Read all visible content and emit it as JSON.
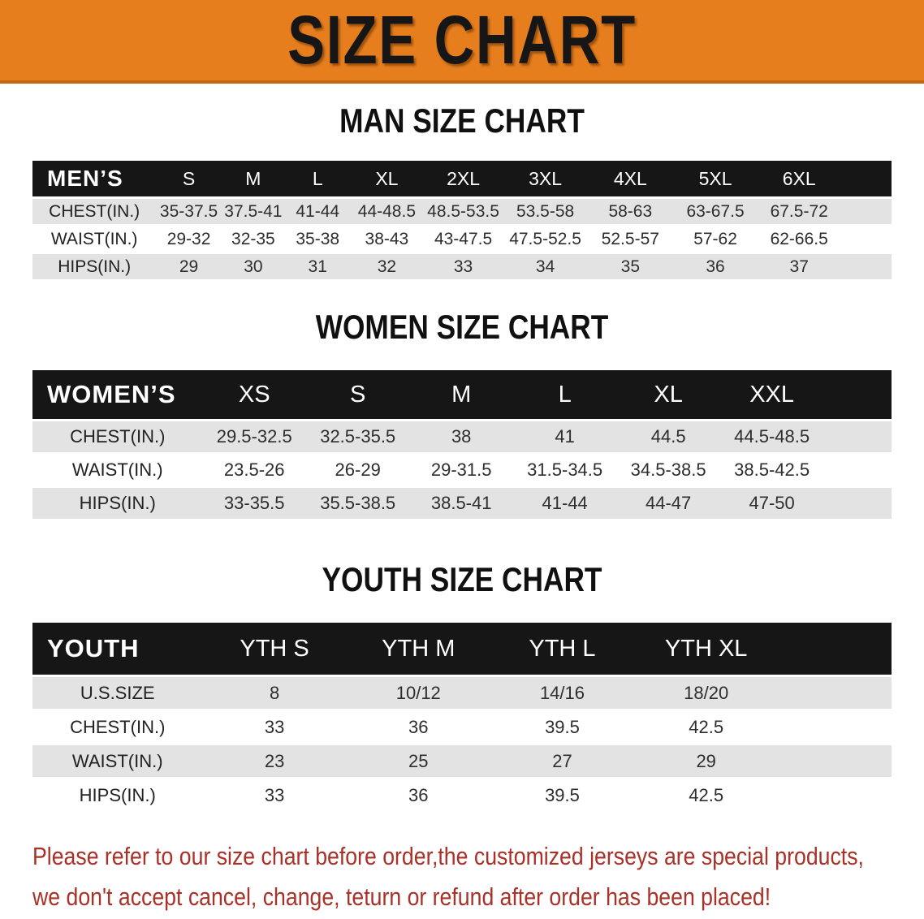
{
  "banner": {
    "title": "SIZE CHART",
    "bg_color": "#E67E1E",
    "text_color": "#161616"
  },
  "sections": [
    {
      "heading": "MAN SIZE CHART",
      "table": {
        "header_label": "MEN’S",
        "sizes": [
          "S",
          "M",
          "L",
          "XL",
          "2XL",
          "3XL",
          "4XL",
          "5XL",
          "6XL"
        ],
        "rows": [
          {
            "label": "CHEST(IN.)",
            "values": [
              "35-37.5",
              "37.5-41",
              "41-44",
              "44-48.5",
              "48.5-53.5",
              "53.5-58",
              "58-63",
              "63-67.5",
              "67.5-72"
            ]
          },
          {
            "label": "WAIST(IN.)",
            "values": [
              "29-32",
              "32-35",
              "35-38",
              "38-43",
              "43-47.5",
              "47.5-52.5",
              "52.5-57",
              "57-62",
              "62-66.5"
            ]
          },
          {
            "label": "HIPS(IN.)",
            "values": [
              "29",
              "30",
              "31",
              "32",
              "33",
              "34",
              "35",
              "36",
              "37"
            ]
          }
        ]
      }
    },
    {
      "heading": "WOMEN SIZE CHART",
      "table": {
        "header_label": "WOMEN’S",
        "sizes": [
          "XS",
          "S",
          "M",
          "L",
          "XL",
          "XXL"
        ],
        "rows": [
          {
            "label": "CHEST(IN.)",
            "values": [
              "29.5-32.5",
              "32.5-35.5",
              "38",
              "41",
              "44.5",
              "44.5-48.5"
            ]
          },
          {
            "label": "WAIST(IN.)",
            "values": [
              "23.5-26",
              "26-29",
              "29-31.5",
              "31.5-34.5",
              "34.5-38.5",
              "38.5-42.5"
            ]
          },
          {
            "label": "HIPS(IN.)",
            "values": [
              "33-35.5",
              "35.5-38.5",
              "38.5-41",
              "41-44",
              "44-47",
              "47-50"
            ]
          }
        ]
      }
    },
    {
      "heading": "YOUTH SIZE CHART",
      "table": {
        "header_label": "YOUTH",
        "sizes": [
          "YTH S",
          "YTH M",
          "YTH L",
          "YTH XL"
        ],
        "rows": [
          {
            "label": "U.S.SIZE",
            "values": [
              "8",
              "10/12",
              "14/16",
              "18/20"
            ]
          },
          {
            "label": "CHEST(IN.)",
            "values": [
              "33",
              "36",
              "39.5",
              "42.5"
            ]
          },
          {
            "label": "WAIST(IN.)",
            "values": [
              "23",
              "25",
              "27",
              "29"
            ]
          },
          {
            "label": "HIPS(IN.)",
            "values": [
              "33",
              "36",
              "39.5",
              "42.5"
            ]
          }
        ]
      }
    }
  ],
  "footer": {
    "line1": "Please refer to our size chart before order,the customized jerseys are special products,",
    "line2": "we don't accept cancel, change, teturn or refund after order has been placed!",
    "text_color": "#A93128"
  }
}
